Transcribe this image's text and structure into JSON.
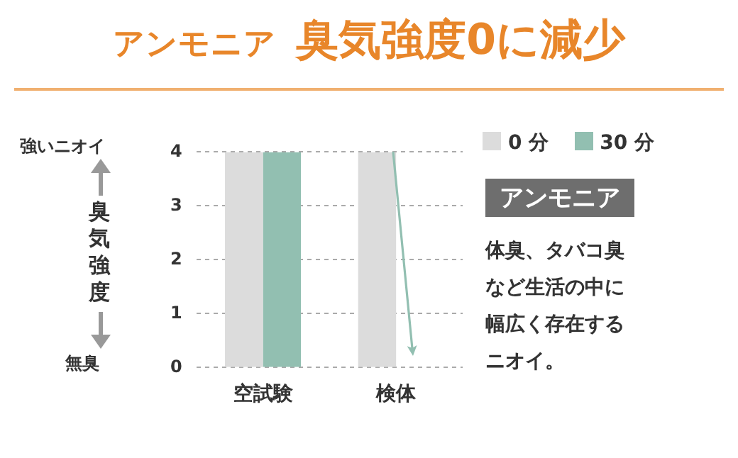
{
  "chart_data": {
    "type": "bar",
    "title": "アンモニア 臭気強度0に減少",
    "ylabel": "臭気強度",
    "categories": [
      "空試験",
      "検体"
    ],
    "series": [
      {
        "name": "0 分",
        "color": "#dcdcdc",
        "values": [
          4,
          4
        ]
      },
      {
        "name": "30 分",
        "color": "#92bfb1",
        "values": [
          4,
          0
        ]
      }
    ],
    "ylim": [
      0,
      4
    ],
    "yticks": [
      0,
      1,
      2,
      3,
      4
    ],
    "grid": "y",
    "legend": "top right",
    "annotations": [
      "強いニオイ",
      "無臭",
      "アンモニア",
      "体臭、タバコ臭など生活の中に幅広く存在するニオイ。"
    ]
  }
}
